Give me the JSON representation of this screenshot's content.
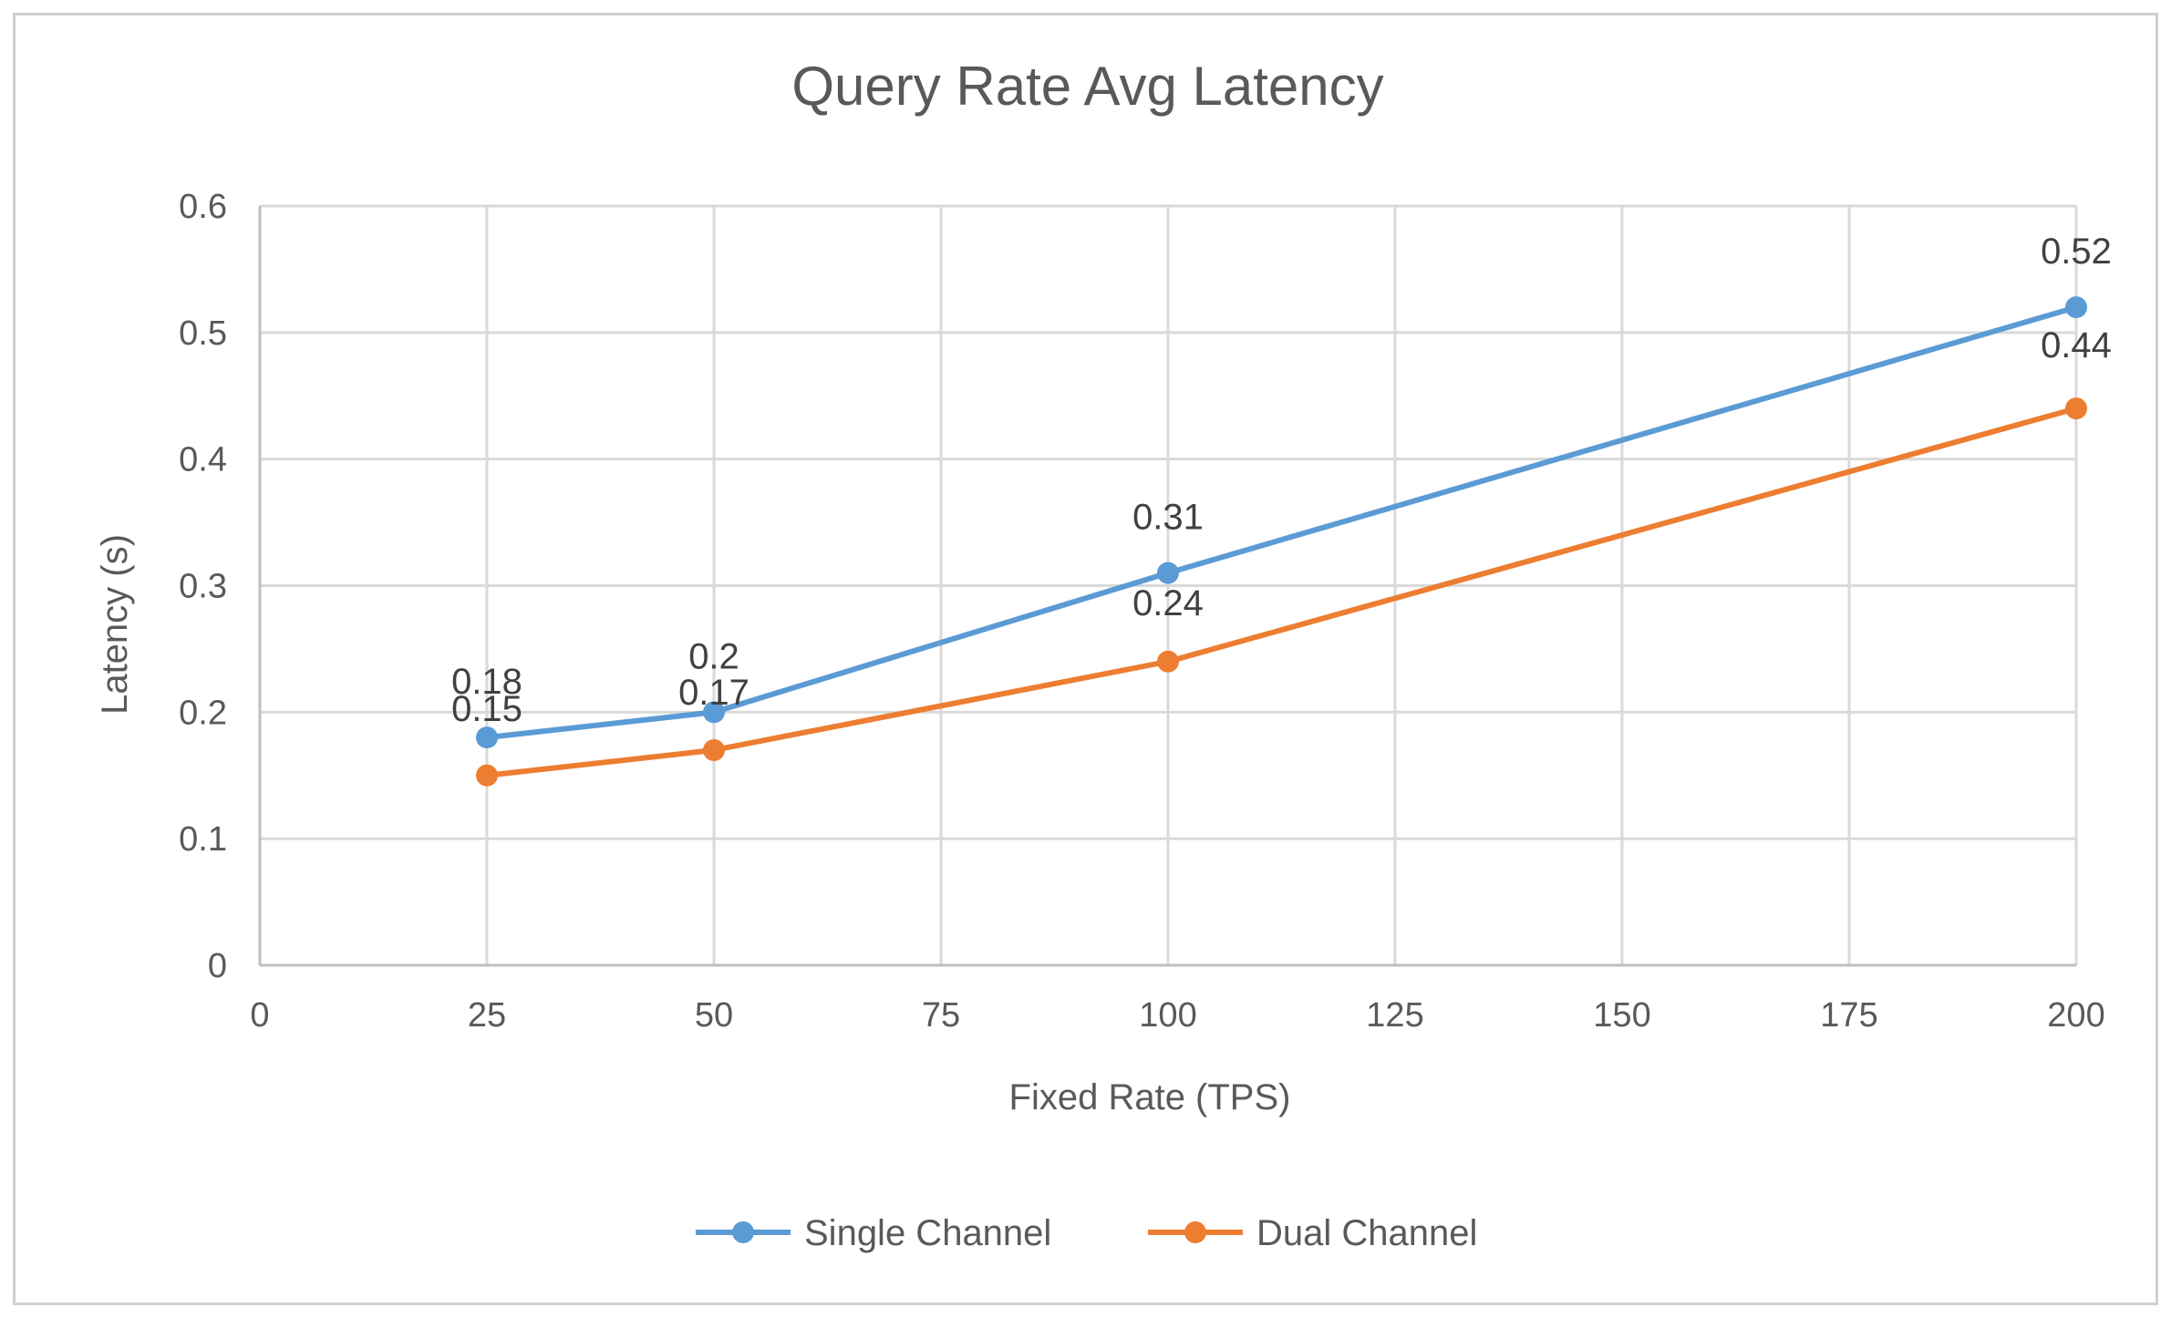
{
  "chart_data": {
    "type": "line",
    "title": "Query Rate Avg Latency",
    "xlabel": "Fixed Rate (TPS)",
    "ylabel": "Latency (s)",
    "xlim": [
      0,
      200
    ],
    "ylim": [
      0,
      0.6
    ],
    "x_ticks": [
      0,
      25,
      50,
      75,
      100,
      125,
      150,
      175,
      200
    ],
    "y_ticks": [
      0,
      0.1,
      0.2,
      0.3,
      0.4,
      0.5,
      0.6
    ],
    "x_tick_labels": [
      "0",
      "25",
      "50",
      "75",
      "100",
      "125",
      "150",
      "175",
      "200"
    ],
    "y_tick_labels": [
      "0",
      "0.1",
      "0.2",
      "0.3",
      "0.4",
      "0.5",
      "0.6"
    ],
    "grid": true,
    "legend_position": "bottom",
    "series": [
      {
        "name": "Single Channel",
        "color": "#5b9bd5",
        "x": [
          25,
          50,
          100,
          200
        ],
        "values": [
          0.18,
          0.2,
          0.31,
          0.52
        ],
        "labels": [
          "0.18",
          "0.2",
          "0.31",
          "0.52"
        ]
      },
      {
        "name": "Dual Channel",
        "color": "#ed7d31",
        "x": [
          25,
          50,
          100,
          200
        ],
        "values": [
          0.15,
          0.17,
          0.24,
          0.44
        ],
        "labels": [
          "0.15",
          "0.17",
          "0.24",
          "0.44"
        ]
      }
    ]
  }
}
